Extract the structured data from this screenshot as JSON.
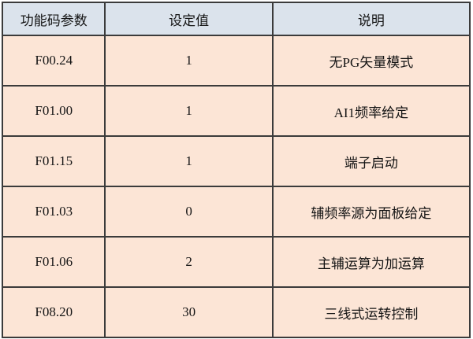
{
  "table": {
    "headers": [
      "功能码参数",
      "设定值",
      "说明"
    ],
    "rows": [
      [
        "F00.24",
        "1",
        "无PG矢量模式"
      ],
      [
        "F01.00",
        "1",
        "AI1频率给定"
      ],
      [
        "F01.15",
        "1",
        "端子启动"
      ],
      [
        "F01.03",
        "0",
        "辅频率源为面板给定"
      ],
      [
        "F01.06",
        "2",
        "主辅运算为加运算"
      ],
      [
        "F08.20",
        "30",
        "三线式运转控制"
      ]
    ]
  },
  "colors": {
    "header_bg": "#dbe3ec",
    "row_bg": "#fce5d6",
    "border": "#3b3b3b",
    "text": "#141414"
  }
}
